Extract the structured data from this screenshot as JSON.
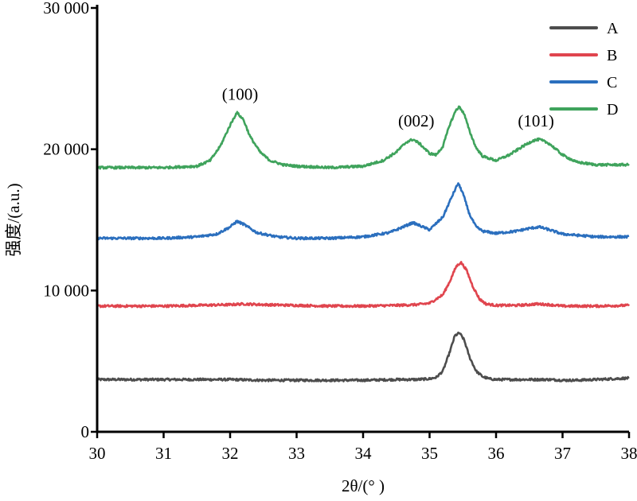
{
  "chart_data": {
    "type": "line",
    "title": "",
    "xlabel": "2θ/(° )",
    "ylabel": "强度/(a.u.)",
    "xlim": [
      30,
      38
    ],
    "ylim": [
      0,
      30000
    ],
    "x_ticks": [
      30,
      31,
      32,
      33,
      34,
      35,
      36,
      37,
      38
    ],
    "x_tick_labels": [
      "30",
      "31",
      "32",
      "33",
      "34",
      "35",
      "36",
      "37",
      "38"
    ],
    "y_ticks": [
      0,
      10000,
      20000,
      30000
    ],
    "y_tick_labels": [
      "0",
      "10 000",
      "20 000",
      "30 000"
    ],
    "grid": false,
    "legend_position": "top-right",
    "series": [
      {
        "name": "A",
        "color": "#4d4d4d",
        "x": [
          30.0,
          30.5,
          31.0,
          31.5,
          32.0,
          32.5,
          33.0,
          33.5,
          34.0,
          34.5,
          34.8,
          35.0,
          35.1,
          35.2,
          35.3,
          35.38,
          35.45,
          35.52,
          35.6,
          35.7,
          35.8,
          35.9,
          36.0,
          36.2,
          36.5,
          36.8,
          37.0,
          37.2,
          37.5,
          38.0
        ],
        "y": [
          3700,
          3700,
          3700,
          3700,
          3700,
          3650,
          3650,
          3650,
          3650,
          3700,
          3700,
          3750,
          3850,
          4300,
          5600,
          6800,
          7000,
          6500,
          5300,
          4300,
          3900,
          3750,
          3700,
          3700,
          3700,
          3700,
          3650,
          3650,
          3700,
          3800
        ]
      },
      {
        "name": "B",
        "color": "#e0454e",
        "x": [
          30.0,
          30.5,
          31.0,
          31.5,
          32.0,
          32.2,
          32.5,
          33.0,
          33.5,
          34.0,
          34.5,
          34.8,
          35.0,
          35.2,
          35.3,
          35.4,
          35.47,
          35.55,
          35.65,
          35.75,
          35.85,
          36.0,
          36.3,
          36.5,
          36.6,
          36.8,
          37.0,
          37.5,
          38.0
        ],
        "y": [
          8900,
          8900,
          8900,
          8950,
          9000,
          9050,
          9000,
          8950,
          8900,
          8900,
          8950,
          9000,
          9100,
          9700,
          10600,
          11700,
          12000,
          11500,
          10300,
          9400,
          9050,
          8950,
          8950,
          9000,
          9050,
          9000,
          8900,
          8900,
          8950
        ]
      },
      {
        "name": "C",
        "color": "#2b6fbe",
        "x": [
          30.0,
          30.5,
          31.0,
          31.5,
          31.8,
          32.0,
          32.1,
          32.2,
          32.4,
          32.7,
          33.0,
          33.5,
          34.0,
          34.4,
          34.6,
          34.75,
          34.85,
          35.0,
          35.2,
          35.35,
          35.43,
          35.5,
          35.6,
          35.7,
          35.8,
          36.0,
          36.3,
          36.5,
          36.65,
          36.8,
          37.0,
          37.5,
          38.0
        ],
        "y": [
          13700,
          13700,
          13700,
          13800,
          14000,
          14500,
          14900,
          14700,
          14100,
          13800,
          13700,
          13700,
          13800,
          14100,
          14500,
          14800,
          14600,
          14300,
          15200,
          16800,
          17600,
          16900,
          15400,
          14500,
          14200,
          14050,
          14200,
          14400,
          14500,
          14300,
          14000,
          13800,
          13800
        ]
      },
      {
        "name": "D",
        "color": "#3fa35c",
        "x": [
          30.0,
          30.5,
          31.0,
          31.5,
          31.7,
          31.85,
          32.0,
          32.1,
          32.2,
          32.3,
          32.45,
          32.6,
          32.8,
          33.0,
          33.5,
          34.0,
          34.3,
          34.5,
          34.65,
          34.75,
          34.85,
          35.0,
          35.1,
          35.2,
          35.3,
          35.4,
          35.45,
          35.52,
          35.6,
          35.7,
          35.8,
          36.0,
          36.2,
          36.4,
          36.55,
          36.65,
          36.8,
          37.0,
          37.2,
          37.5,
          38.0
        ],
        "y": [
          18700,
          18700,
          18700,
          18800,
          19200,
          20200,
          21700,
          22600,
          22100,
          20900,
          19800,
          19200,
          18900,
          18800,
          18700,
          18800,
          19200,
          19800,
          20500,
          20700,
          20400,
          19700,
          19600,
          20200,
          21700,
          22800,
          23000,
          22500,
          21300,
          20100,
          19500,
          19200,
          19600,
          20200,
          20600,
          20700,
          20400,
          19600,
          19100,
          18900,
          18900
        ]
      }
    ],
    "annotations": [
      {
        "text": "(100)",
        "x": 32.15,
        "y": 23500
      },
      {
        "text": "(002)",
        "x": 34.8,
        "y": 21600
      },
      {
        "text": "(101)",
        "x": 36.6,
        "y": 21600
      }
    ]
  }
}
